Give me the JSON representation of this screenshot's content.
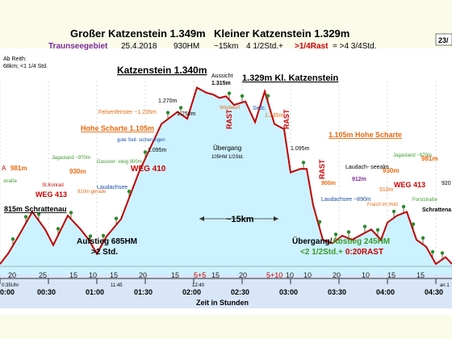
{
  "header": {
    "title_left": "Großer Katzenstein 1.349m",
    "title_right": "Kleiner Katzenstein 1.329m",
    "region": "Traunseegebiet",
    "date": "25.4.2018",
    "hm": "930HM",
    "distance": "~15km",
    "time_plus": "4 1/2Std.+",
    "rast": ">1/4Rast",
    "total": "= >4 3/4Std.",
    "corner": "23/"
  },
  "notes": {
    "ab_reith_1": "Ab Reith:",
    "ab_reith_2": "68km; <1 1/4 Std."
  },
  "colors": {
    "profile": "#c00000",
    "fill": "#ccf2ff",
    "peak_label": "#000000",
    "orange": "#e86a10",
    "green": "#3a9a2a",
    "blue": "#1a4fa8",
    "red": "#cc0000",
    "purple": "#7a2a9a",
    "bottom_band": "#d8e6f8",
    "tree": "#2a8a2a"
  },
  "chart_data": {
    "type": "area",
    "title": "",
    "xlabel": "Zeit in Stunden",
    "ylabel": "",
    "xlim": [
      0,
      280
    ],
    "ylim": [
      0,
      1400
    ],
    "x_unit": "minutes",
    "x_ticks": [
      "0:00",
      "00:30",
      "01:00",
      "01:30",
      "02:00",
      "02:30",
      "03:00",
      "03:30",
      "04:00",
      "04:30"
    ],
    "x_tick_minutes": [
      0,
      30,
      60,
      90,
      120,
      150,
      180,
      210,
      240,
      270
    ],
    "x": [
      0,
      5,
      12,
      20,
      28,
      33,
      42,
      50,
      55,
      60,
      66,
      75,
      86,
      100,
      110,
      116,
      122,
      128,
      132,
      136,
      140,
      145,
      152,
      158,
      164,
      170,
      176,
      180,
      186,
      190,
      194,
      200,
      206,
      212,
      218,
      222,
      230,
      236,
      240,
      246,
      252,
      258,
      264,
      270,
      276,
      280
    ],
    "y": [
      830,
      860,
      915,
      981,
      930,
      885,
      970,
      930,
      900,
      860,
      910,
      960,
      1095,
      1235,
      1270,
      1250,
      1340,
      1325,
      1320,
      1310,
      1315,
      1290,
      1300,
      1240,
      1329,
      1235,
      1220,
      1095,
      1105,
      1105,
      1000,
      900,
      890,
      912,
      900,
      910,
      930,
      900,
      950,
      970,
      981,
      900,
      880,
      830,
      850,
      830
    ],
    "segments": {
      "minutes": [
        "20",
        "25",
        "15",
        "10",
        "15",
        "20",
        "15",
        "5+5",
        "15",
        "20",
        "5+10",
        "10",
        "10",
        "20",
        "10",
        "15",
        "15"
      ],
      "segment_ends": [
        14,
        38,
        52,
        62,
        78,
        98,
        118,
        126,
        140,
        160,
        174,
        184,
        196,
        220,
        232,
        252,
        268
      ]
    },
    "sections": {
      "aufstieg": "Aufstieg 685HM",
      "aufstieg_time": ">2 Std.",
      "uebergang_label_prefix": "Übergang/",
      "uebergang_label_suffix": "Abstieg 245HM",
      "uebergang_time": "<2 1/2Std.+",
      "uebergang_rast": "0:20RAST",
      "middle": "~15km"
    },
    "annotations": {
      "katzenstein_big": "Katzenstein 1.340m",
      "katzenstein_small": "1.329m Kl. Katzenstein",
      "aussicht": "Aussicht",
      "aussicht_h": "1.315m",
      "windwurf": "Windwurf",
      "seilc": "Seilc.",
      "felsenfenster": "Felsenfenster ~1.235m",
      "hohe_scharte_l": "Hohe Scharte 1.105m",
      "hohe_scharte_r": "1.105m Hohe Scharte",
      "gute_seil": "gute Seil- sicherungen",
      "gassnersteig": "Gassner- steig 900m",
      "weg410": "WEG 410",
      "weg413_l": "WEG 413",
      "weg413_r": "WEG 413",
      "st_konrad": "St.Konrad",
      "jagastand_l": "Jagastand ~970m",
      "jagastand_r": "Jagastand ~970m",
      "laudachsee_l": "Laudachsee",
      "laudachsee_r": "Laudachsee ~890m",
      "laudachseealm": "Laudach- seealm",
      "laudachseealm_h": "912m",
      "franzl": "Franzl im Holz",
      "h981_l": "981m",
      "h981_r": "981m",
      "h930_l": "930m",
      "h930_r": "930m",
      "h910_l": "910m gerade",
      "h910_r": "910m",
      "h900_r": "900m",
      "h1095_l": "1.095m",
      "h1095_r": "1.095m",
      "h1270": "1.270m",
      "h1250": "1.250m",
      "h1235_r": "1.235m",
      "uebergang_mid": "Übergang",
      "uebergang_mid_sub": "105HM 1/2Std.",
      "schrattenau_l": "815m Schrattenau",
      "schrattenau_r": "Schrattena",
      "forststrasse_l": "straße",
      "forststrasse_r": "Forststraße",
      "rast1": "RAST",
      "rast2": "RAST",
      "rast3": "RAST",
      "a_left": "A",
      "n920": "920"
    },
    "times": {
      "start": "0:35Uhr",
      "t1145": "11:45",
      "t1240": "12:40",
      "end": "an 1"
    }
  }
}
